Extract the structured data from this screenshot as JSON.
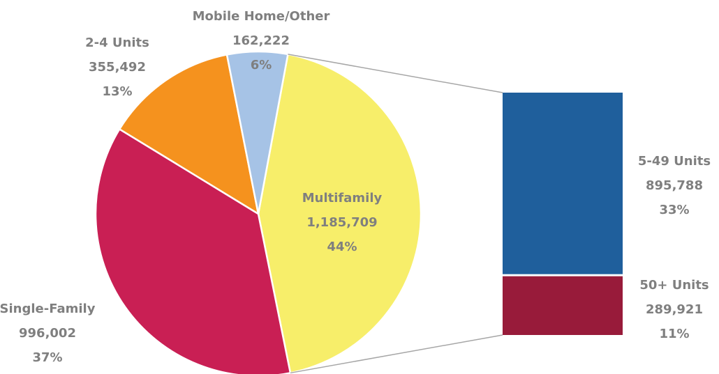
{
  "chart_data": {
    "type": "pie",
    "categories": [
      "Multifamily",
      "Single-Family",
      "2-4 Units",
      "Mobile Home/Other"
    ],
    "values": [
      1185709,
      996002,
      355492,
      162222
    ],
    "value_labels": [
      "1,185,709",
      "996,002",
      "355,492",
      "162,222"
    ],
    "percents": [
      44,
      37,
      13,
      6
    ],
    "percent_labels": [
      "44%",
      "37%",
      "13%",
      "6%"
    ],
    "colors": [
      "#f7ee6a",
      "#c91f54",
      "#f5921e",
      "#a6c3e6"
    ],
    "breakdown": {
      "categories": [
        "5-49 Units",
        "50+ Units"
      ],
      "values": [
        895788,
        289921
      ],
      "value_labels": [
        "895,788",
        "289,921"
      ],
      "percents": [
        33,
        11
      ],
      "percent_labels": [
        "33%",
        "11%"
      ],
      "colors": [
        "#1f5f9c",
        "#981b3a"
      ]
    }
  }
}
